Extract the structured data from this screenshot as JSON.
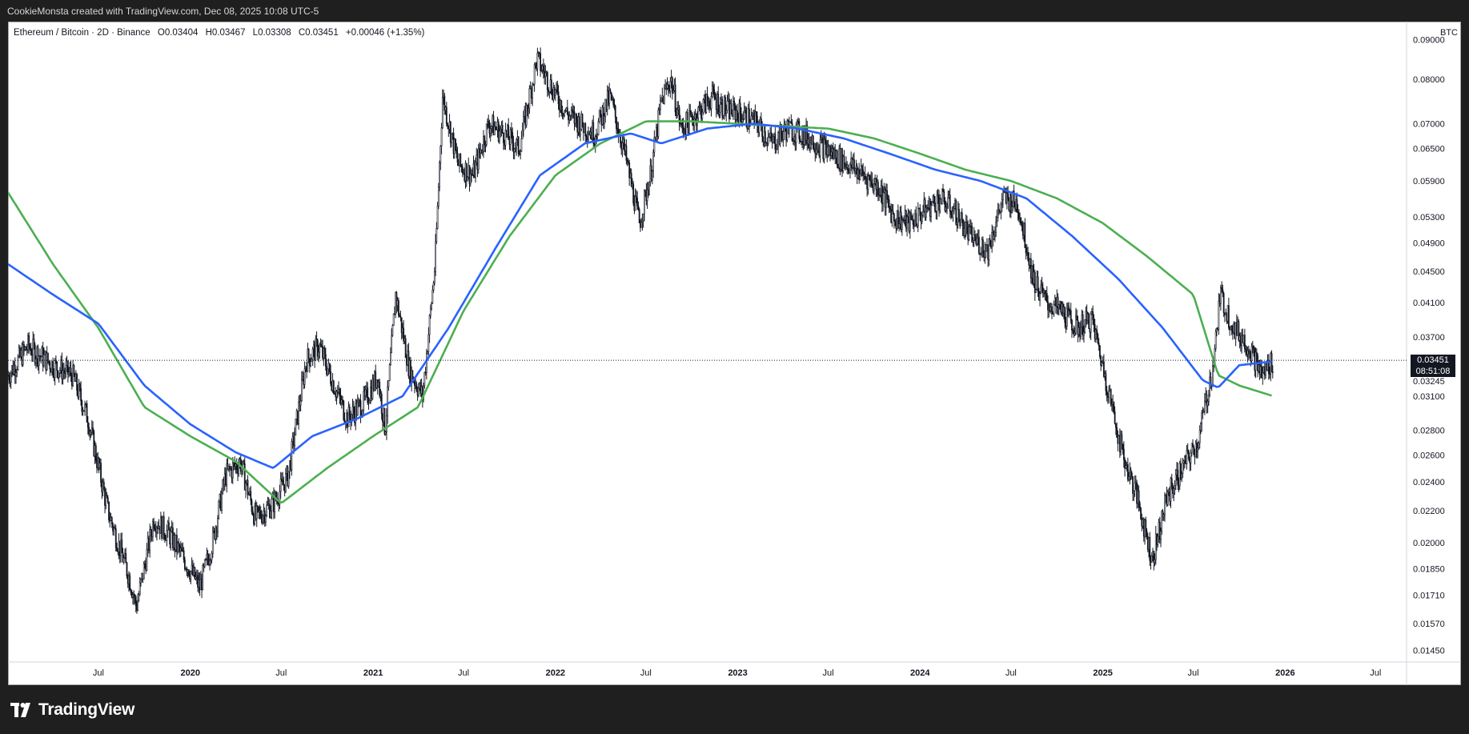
{
  "header": {
    "caption": "CookieMonsta created with TradingView.com, Dec 08, 2025 10:08 UTC-5"
  },
  "legend": {
    "symbol": "Ethereum / Bitcoin · 2D · Binance",
    "open": "O0.03404",
    "high": "H0.03467",
    "low": "L0.03308",
    "close": "C0.03451",
    "change": "+0.00046 (+1.35%)"
  },
  "currency": "BTC",
  "last_price": {
    "value": "0.03451",
    "countdown": "08:51:08"
  },
  "brand": {
    "name": "TradingView"
  },
  "colors": {
    "ma_fast": "#2962ff",
    "ma_slow": "#4caf50",
    "candles": "#131722",
    "background": "#ffffff"
  },
  "chart_data": {
    "type": "line",
    "y_scale": "log",
    "ylim": [
      0.014,
      0.095
    ],
    "y_ticks": [
      "0.09000",
      "0.08000",
      "0.07000",
      "0.06500",
      "0.05900",
      "0.05300",
      "0.04900",
      "0.04500",
      "0.04100",
      "0.03700",
      "0.03245",
      "0.03100",
      "0.02800",
      "0.02600",
      "0.02400",
      "0.02200",
      "0.02000",
      "0.01850",
      "0.01710",
      "0.01570",
      "0.01450"
    ],
    "x_ticks": [
      "Jul",
      "2020",
      "Jul",
      "2021",
      "Jul",
      "2022",
      "Jul",
      "2023",
      "Jul",
      "2024",
      "Jul",
      "2025",
      "Jul",
      "2026",
      "Jul"
    ],
    "xlim": [
      "2019-01-01",
      "2026-09-01"
    ],
    "series": [
      {
        "role": "price",
        "x": [
          "2019-01-01",
          "2019-02-10",
          "2019-04-01",
          "2019-05-10",
          "2019-06-10",
          "2019-07-20",
          "2019-09-01",
          "2019-09-15",
          "2019-10-20",
          "2019-11-20",
          "2019-12-20",
          "2020-01-20",
          "2020-02-14",
          "2020-03-12",
          "2020-04-10",
          "2020-05-10",
          "2020-06-15",
          "2020-07-15",
          "2020-08-20",
          "2020-09-15",
          "2020-10-15",
          "2020-11-10",
          "2020-12-15",
          "2021-01-10",
          "2021-01-25",
          "2021-02-15",
          "2021-03-15",
          "2021-04-10",
          "2021-05-05",
          "2021-05-20",
          "2021-06-20",
          "2021-07-20",
          "2021-08-20",
          "2021-09-20",
          "2021-10-20",
          "2021-11-25",
          "2021-12-25",
          "2022-01-25",
          "2022-02-20",
          "2022-03-20",
          "2022-04-20",
          "2022-05-20",
          "2022-06-18",
          "2022-07-10",
          "2022-08-01",
          "2022-08-20",
          "2022-09-10",
          "2022-10-10",
          "2022-11-10",
          "2022-12-10",
          "2023-01-10",
          "2023-02-10",
          "2023-03-10",
          "2023-04-10",
          "2023-05-10",
          "2023-06-10",
          "2023-07-10",
          "2023-08-10",
          "2023-09-10",
          "2023-10-10",
          "2023-11-10",
          "2023-12-10",
          "2024-01-10",
          "2024-02-10",
          "2024-03-10",
          "2024-04-10",
          "2024-05-15",
          "2024-06-15",
          "2024-07-15",
          "2024-08-15",
          "2024-09-10",
          "2024-10-10",
          "2024-11-10",
          "2024-12-10",
          "2025-01-10",
          "2025-02-10",
          "2025-03-10",
          "2025-04-10",
          "2025-05-10",
          "2025-06-10",
          "2025-07-10",
          "2025-08-10",
          "2025-08-24",
          "2025-09-20",
          "2025-10-20",
          "2025-11-15",
          "2025-12-08"
        ],
        "values": [
          0.033,
          0.036,
          0.034,
          0.033,
          0.029,
          0.022,
          0.018,
          0.0165,
          0.0215,
          0.0205,
          0.019,
          0.0175,
          0.02,
          0.0245,
          0.0255,
          0.0215,
          0.0225,
          0.0245,
          0.0345,
          0.036,
          0.032,
          0.029,
          0.0305,
          0.033,
          0.028,
          0.042,
          0.0335,
          0.031,
          0.046,
          0.076,
          0.062,
          0.06,
          0.07,
          0.068,
          0.065,
          0.085,
          0.078,
          0.072,
          0.07,
          0.068,
          0.076,
          0.064,
          0.052,
          0.06,
          0.075,
          0.08,
          0.069,
          0.072,
          0.076,
          0.073,
          0.072,
          0.07,
          0.066,
          0.069,
          0.068,
          0.066,
          0.064,
          0.062,
          0.06,
          0.058,
          0.053,
          0.052,
          0.054,
          0.056,
          0.054,
          0.05,
          0.048,
          0.056,
          0.055,
          0.044,
          0.041,
          0.04,
          0.038,
          0.039,
          0.032,
          0.026,
          0.023,
          0.019,
          0.023,
          0.025,
          0.027,
          0.034,
          0.042,
          0.038,
          0.036,
          0.033,
          0.0345
        ]
      },
      {
        "role": "ma_fast",
        "x": [
          "2019-01-01",
          "2019-04-01",
          "2019-07-01",
          "2019-10-01",
          "2020-01-01",
          "2020-04-01",
          "2020-06-15",
          "2020-09-01",
          "2020-12-01",
          "2021-03-01",
          "2021-06-01",
          "2021-09-01",
          "2021-12-01",
          "2022-03-01",
          "2022-06-01",
          "2022-08-01",
          "2022-11-01",
          "2023-02-01",
          "2023-05-01",
          "2023-08-01",
          "2023-11-01",
          "2024-02-01",
          "2024-05-01",
          "2024-08-01",
          "2024-11-01",
          "2025-02-01",
          "2025-05-01",
          "2025-07-20",
          "2025-08-20",
          "2025-10-01",
          "2025-12-08"
        ],
        "values": [
          0.046,
          0.042,
          0.0385,
          0.032,
          0.0285,
          0.0262,
          0.025,
          0.0275,
          0.029,
          0.031,
          0.038,
          0.048,
          0.06,
          0.066,
          0.068,
          0.066,
          0.069,
          0.07,
          0.069,
          0.067,
          0.064,
          0.061,
          0.059,
          0.056,
          0.05,
          0.044,
          0.038,
          0.0325,
          0.0318,
          0.034,
          0.0344
        ]
      },
      {
        "role": "ma_slow",
        "x": [
          "2019-01-01",
          "2019-04-01",
          "2019-07-01",
          "2019-10-01",
          "2020-01-01",
          "2020-04-01",
          "2020-07-01",
          "2020-10-01",
          "2021-01-01",
          "2021-04-01",
          "2021-07-01",
          "2021-10-01",
          "2022-01-01",
          "2022-04-01",
          "2022-07-01",
          "2022-10-01",
          "2023-01-01",
          "2023-04-01",
          "2023-07-01",
          "2023-10-01",
          "2024-01-01",
          "2024-04-01",
          "2024-07-01",
          "2024-10-01",
          "2025-01-01",
          "2025-04-01",
          "2025-07-01",
          "2025-08-20",
          "2025-10-01",
          "2025-12-08"
        ],
        "values": [
          0.057,
          0.046,
          0.038,
          0.03,
          0.0275,
          0.0255,
          0.0225,
          0.025,
          0.0275,
          0.03,
          0.04,
          0.05,
          0.06,
          0.066,
          0.0705,
          0.0705,
          0.07,
          0.0695,
          0.069,
          0.067,
          0.064,
          0.061,
          0.059,
          0.056,
          0.052,
          0.047,
          0.042,
          0.033,
          0.032,
          0.031
        ]
      }
    ]
  }
}
